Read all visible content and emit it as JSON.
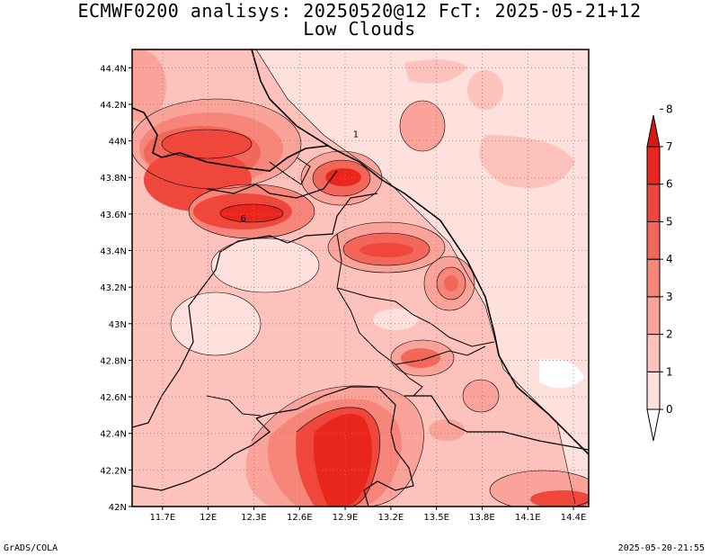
{
  "header": {
    "title": "ECMWF0200 analisys: 20250520@12 FcT: 2025-05-21+12",
    "subtitle": "Low Clouds"
  },
  "footer": {
    "left": "GrADS/COLA",
    "right": "2025-05-20-21:55"
  },
  "chart_data": {
    "type": "heatmap",
    "title": "ECMWF0200 analisys: 20250520@12 FcT: 2025-05-21+12",
    "subtitle": "Low Clouds",
    "lon_range": [
      11.5,
      14.5
    ],
    "lat_range": [
      42.0,
      44.5
    ],
    "x_ticks": [
      "11.7E",
      "12E",
      "12.3E",
      "12.6E",
      "12.9E",
      "13.2E",
      "13.5E",
      "13.8E",
      "14.1E",
      "14.4E"
    ],
    "x_tick_values": [
      11.7,
      12.0,
      12.3,
      12.6,
      12.9,
      13.2,
      13.5,
      13.8,
      14.1,
      14.4
    ],
    "y_ticks": [
      "42N",
      "42.2N",
      "42.4N",
      "42.6N",
      "42.8N",
      "43N",
      "43.2N",
      "43.4N",
      "43.6N",
      "43.8N",
      "44N",
      "44.2N",
      "44.4N"
    ],
    "y_tick_values": [
      42.0,
      42.2,
      42.4,
      42.6,
      42.8,
      43.0,
      43.2,
      43.4,
      43.6,
      43.8,
      44.0,
      44.2,
      44.4
    ],
    "grid": true,
    "colorbar": {
      "levels": [
        "0",
        "1",
        "2",
        "3",
        "4",
        "5",
        "6",
        "7",
        "8"
      ],
      "colors": [
        "#ffffff",
        "#fee0dc",
        "#fcc2bb",
        "#f9a39a",
        "#f6857a",
        "#f3665a",
        "#ef473b",
        "#e8261d",
        "#d91a12"
      ]
    },
    "contour_labels": [
      {
        "text": "1",
        "lon": 12.97,
        "lat": 44.02
      },
      {
        "text": "6",
        "lon": 12.23,
        "lat": 43.56
      }
    ]
  }
}
